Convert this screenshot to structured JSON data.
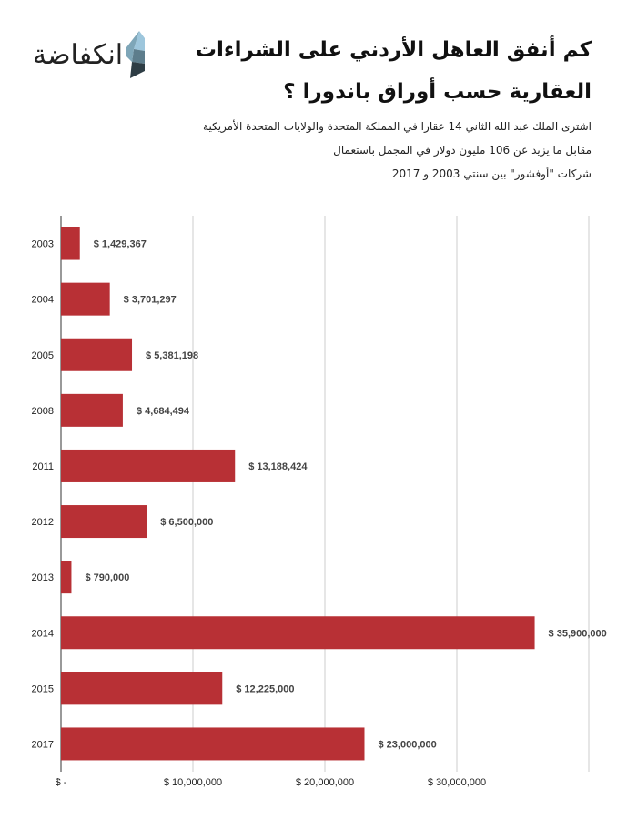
{
  "header": {
    "title_line1": "كم أنفق العاهل الأردني على الشراءات",
    "title_line2": "العقارية حسب أوراق باندورا ؟",
    "subtitle": [
      "اشترى الملك عبد الله الثاني 14 عقارا في المملكة المتحدة والولايات المتحدة الأمريكية",
      "مقابل ما يزيد عن 106 مليون دولار في المجمل باستعمال",
      "شركات \"أوفشور\" بين سنتي 2003 و 2017"
    ],
    "logo": "انكفاضة"
  },
  "chart_data": {
    "type": "bar",
    "orientation": "horizontal",
    "categories": [
      "2003",
      "2004",
      "2005",
      "2008",
      "2011",
      "2012",
      "2013",
      "2014",
      "2015",
      "2017"
    ],
    "values": [
      1429367,
      3701297,
      5381198,
      4684494,
      13188424,
      6500000,
      790000,
      35900000,
      12225000,
      23000000
    ],
    "data_labels": [
      "$ 1,429,367",
      "$ 3,701,297",
      "$ 5,381,198",
      "$ 4,684,494",
      "$ 13,188,424",
      "$ 6,500,000",
      "$ 790,000",
      "$ 35,900,000",
      "$ 12,225,000",
      "$ 23,000,000"
    ],
    "xlim": [
      0,
      40000000
    ],
    "xticks": [
      0,
      10000000,
      20000000,
      30000000,
      40000000
    ],
    "xtick_labels": [
      "$ -",
      "$ 10,000,000",
      "$ 20,000,000",
      "$ 30,000,000",
      ""
    ],
    "grid": "vertical",
    "bar_color": "#b83035",
    "title": "",
    "xlabel": "",
    "ylabel": ""
  }
}
